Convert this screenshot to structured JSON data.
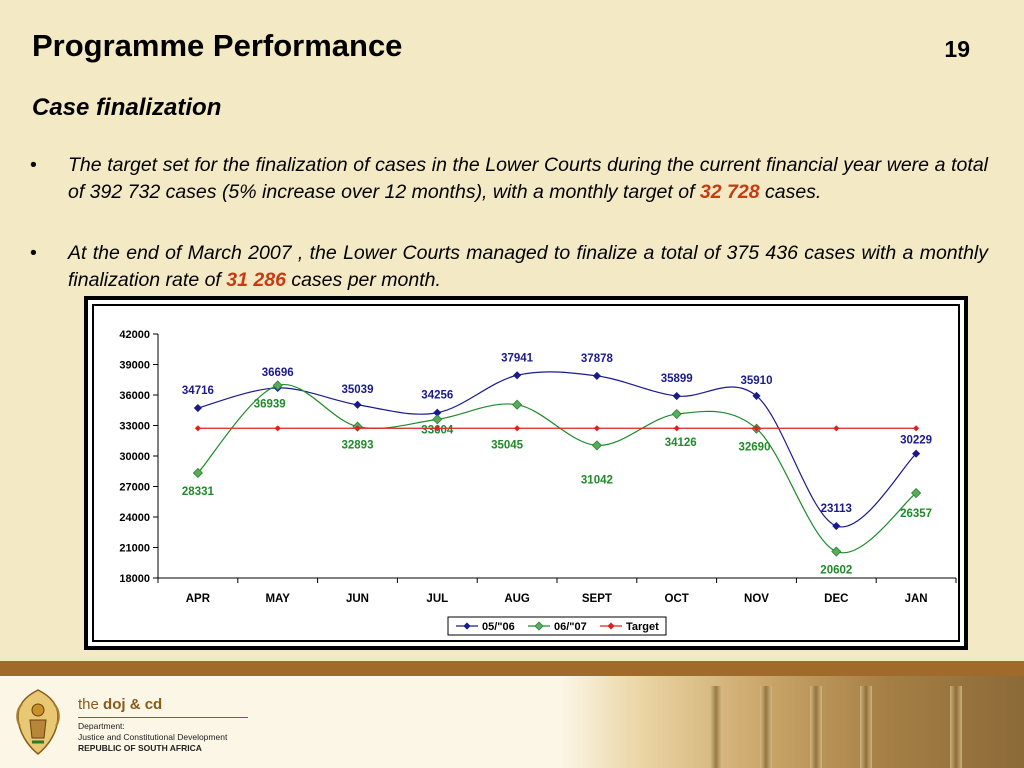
{
  "slide": {
    "title": "Programme Performance",
    "number": "19",
    "subtitle": "Case finalization"
  },
  "bullets": [
    {
      "symbol": "•",
      "text_before": "The target set for the finalization of cases in the Lower Courts during the current financial year were a total of 392 732 cases (5% increase over 12 months), with a monthly target of ",
      "highlight": "32 728",
      "text_after": " cases."
    },
    {
      "symbol": "•",
      "text_before": "At the end of March 2007 , the Lower Courts managed to finalize a total of 375 436 cases with a monthly finalization rate of ",
      "highlight": "31 286",
      "text_after": " cases per month."
    }
  ],
  "footer": {
    "logo_prefix": "the ",
    "logo_name": "doj & cd",
    "dept_line_1": "Department:",
    "dept_line_2": "Justice and Constitutional Development",
    "dept_line_3": "REPUBLIC OF SOUTH AFRICA"
  },
  "chart_data": {
    "type": "line",
    "categories": [
      "APR",
      "MAY",
      "JUN",
      "JUL",
      "AUG",
      "SEPT",
      "OCT",
      "NOV",
      "DEC",
      "JAN"
    ],
    "ylim": [
      18000,
      42000
    ],
    "yticks": [
      18000,
      21000,
      24000,
      27000,
      30000,
      33000,
      36000,
      39000,
      42000
    ],
    "grid": false,
    "legend_position": "bottom",
    "series": [
      {
        "name": "05/\"06",
        "color": "#1a1a8c",
        "marker": "diamond",
        "smooth": true,
        "show_labels": true,
        "values": [
          34716,
          36696,
          35039,
          34256,
          37941,
          37878,
          35899,
          35910,
          23113,
          30229
        ]
      },
      {
        "name": "06/\"07",
        "color": "#1f8a2a",
        "marker_fill": "#5fa85f",
        "marker": "diamond",
        "smooth": true,
        "show_labels": true,
        "values": [
          28331,
          36939,
          32893,
          33604,
          35045,
          31042,
          34126,
          32690,
          20602,
          26357
        ]
      },
      {
        "name": "Target",
        "color": "#e02020",
        "marker": "diamond",
        "smooth": false,
        "show_labels": false,
        "values": [
          32728,
          32728,
          32728,
          32728,
          32728,
          32728,
          32728,
          32728,
          32728,
          32728
        ]
      }
    ]
  }
}
